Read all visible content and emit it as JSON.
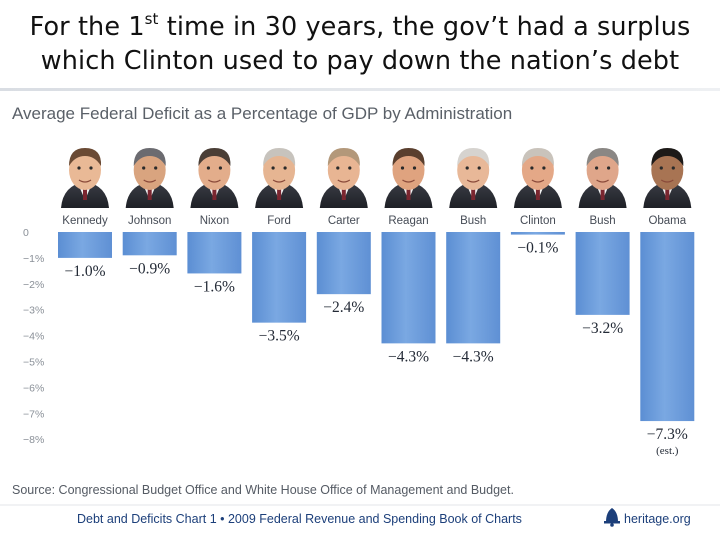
{
  "slide": {
    "headline_part1": "For the 1",
    "headline_sup": "st",
    "headline_part2": " time in 30 years, the gov’t had a surplus",
    "headline_line2": "which Clinton used to pay down the nation’s debt"
  },
  "chart_data": {
    "type": "bar",
    "title": "Average Federal Deficit as a Percentage of GDP by Administration",
    "categories": [
      "Kennedy",
      "Johnson",
      "Nixon",
      "Ford",
      "Carter",
      "Reagan",
      "Bush",
      "Clinton",
      "Bush",
      "Obama"
    ],
    "values": [
      -1.0,
      -0.9,
      -1.6,
      -3.5,
      -2.4,
      -4.3,
      -4.3,
      -0.1,
      -3.2,
      -7.3
    ],
    "value_labels": [
      "−1.0%",
      "−0.9%",
      "−1.6%",
      "−3.5%",
      "−2.4%",
      "−4.3%",
      "−4.3%",
      "−0.1%",
      "−3.2%",
      "−7.3%"
    ],
    "value_notes": [
      "",
      "",
      "",
      "",
      "",
      "",
      "",
      "",
      "",
      "(est.)"
    ],
    "yticks": [
      0,
      -1,
      -2,
      -3,
      -4,
      -5,
      -6,
      -7,
      -8
    ],
    "ytick_labels": [
      "0",
      "−1%",
      "−2%",
      "−3%",
      "−4%",
      "−5%",
      "−6%",
      "−7%",
      "−8%"
    ],
    "ylim": [
      -8,
      0
    ],
    "xlabel": "",
    "ylabel": "",
    "grid": false,
    "bar_color": "#6f9fdc",
    "bar_color_dark": "#4f81c7",
    "source": "Source: Congressional Budget Office and White House Office of Management and Budget.",
    "footer_left": "Debt and Deficits Chart 1 • 2009 Federal Revenue and Spending Book of Charts",
    "footer_right": "heritage.org"
  }
}
